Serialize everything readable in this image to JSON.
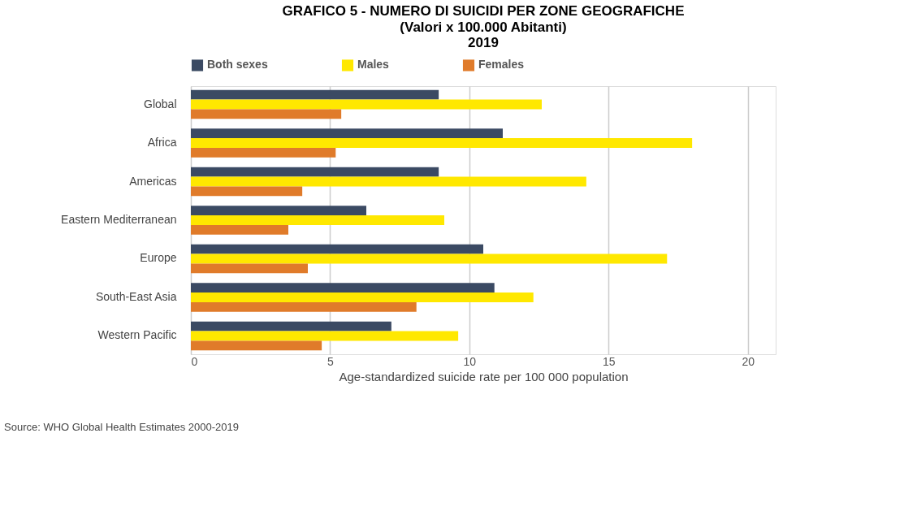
{
  "chart_data": {
    "type": "bar",
    "orientation": "horizontal",
    "title": "GRAFICO 5 - NUMERO DI SUICIDI PER ZONE GEOGRAFICHE",
    "subtitle": "(Valori x 100.000 Abitanti)\n2019",
    "categories": [
      "Global",
      "Africa",
      "Americas",
      "Eastern Mediterranean",
      "Europe",
      "South-East Asia",
      "Western Pacific"
    ],
    "series": [
      {
        "name": "Both sexes",
        "color": "#3b4a63",
        "values": [
          8.9,
          11.2,
          8.9,
          6.3,
          10.5,
          10.9,
          7.2
        ]
      },
      {
        "name": "Males",
        "color": "#ffe800",
        "values": [
          12.6,
          18.0,
          14.2,
          9.1,
          17.1,
          12.3,
          9.6
        ]
      },
      {
        "name": "Females",
        "color": "#e07b2a",
        "values": [
          5.4,
          5.2,
          4.0,
          3.5,
          4.2,
          8.1,
          4.7
        ]
      }
    ],
    "xlim": [
      0,
      21
    ],
    "xticks": [
      0,
      5,
      10,
      15,
      20
    ],
    "xlabel": "Age-standardized suicide rate per 100 000 population",
    "grid": "x",
    "legend": "top",
    "annotations": [
      "Source: WHO Global Health Estimates 2000-2019"
    ]
  }
}
